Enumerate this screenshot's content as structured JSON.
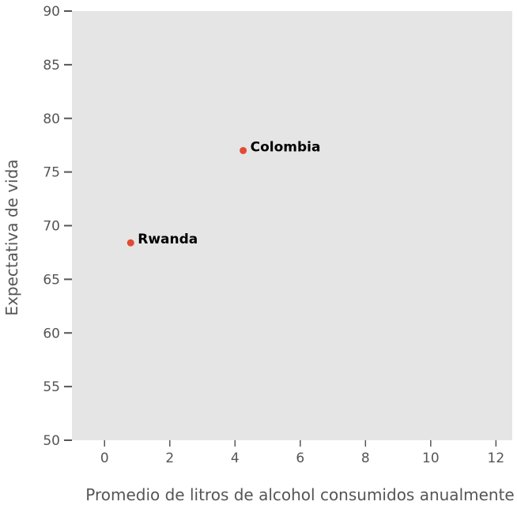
{
  "chart_data": {
    "type": "scatter",
    "title": "",
    "xlabel": "Promedio de litros de alcohol consumidos anualmente",
    "ylabel": "Expectativa de vida",
    "xlim": [
      -1,
      12.5
    ],
    "ylim": [
      50,
      90
    ],
    "xticks": [
      0,
      2,
      4,
      6,
      8,
      10,
      12
    ],
    "yticks": [
      50,
      55,
      60,
      65,
      70,
      75,
      80,
      85,
      90
    ],
    "grid": false,
    "points": [
      {
        "label": "Colombia",
        "x": 4.25,
        "y": 77.0
      },
      {
        "label": "Rwanda",
        "x": 0.8,
        "y": 68.4
      }
    ],
    "colors": {
      "background": "#e5e5e5",
      "point": "#e24a33",
      "tick": "#555555",
      "label": "#000000"
    }
  }
}
